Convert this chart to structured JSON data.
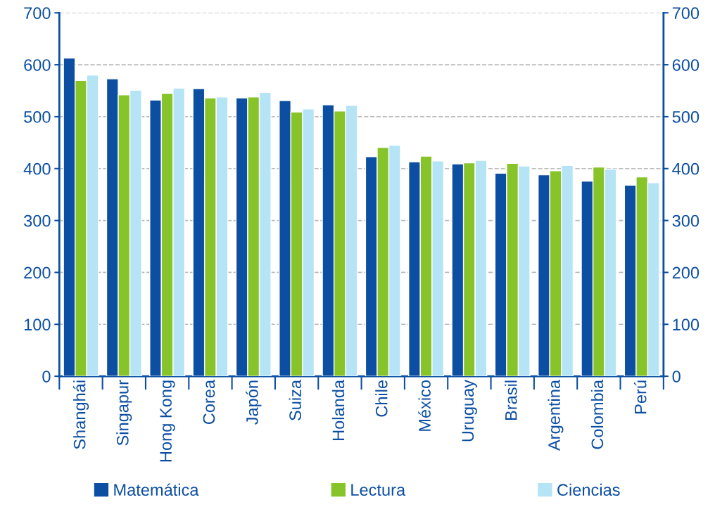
{
  "chart_data": {
    "type": "bar",
    "categories": [
      "Shanghái",
      "Singapur",
      "Hong Kong",
      "Corea",
      "Japón",
      "Suiza",
      "Holanda",
      "Chile",
      "México",
      "Uruguay",
      "Brasil",
      "Argentina",
      "Colombia",
      "Perú"
    ],
    "series": [
      {
        "name": "Matemática",
        "color": "#0b4ea2",
        "values": [
          613,
          573,
          532,
          554,
          536,
          531,
          523,
          423,
          413,
          409,
          391,
          388,
          376,
          368
        ]
      },
      {
        "name": "Lectura",
        "color": "#86c42a",
        "values": [
          570,
          542,
          545,
          536,
          538,
          509,
          511,
          441,
          424,
          411,
          410,
          396,
          403,
          384
        ]
      },
      {
        "name": "Ciencias",
        "color": "#b5e4f6",
        "values": [
          580,
          551,
          555,
          538,
          547,
          515,
          522,
          445,
          415,
          416,
          405,
          406,
          399,
          373
        ]
      }
    ],
    "ylim": [
      0,
      700
    ],
    "yticks": [
      0,
      100,
      200,
      300,
      400,
      500,
      600,
      700
    ],
    "y2lim": [
      0,
      700
    ],
    "y2ticks": [
      0,
      100,
      200,
      300,
      400,
      500,
      600,
      700
    ],
    "grid": "y",
    "legend": "bottom"
  }
}
